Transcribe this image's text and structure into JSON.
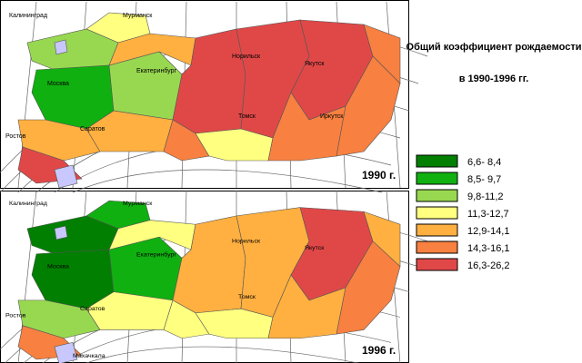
{
  "title": "Общий коэффициент рождаемости",
  "subtitle": "в 1990-1996 гг.",
  "legend": [
    {
      "label": "6,6- 8,4",
      "color": "#007f00"
    },
    {
      "label": "8,5- 9,7",
      "color": "#10b010"
    },
    {
      "label": "9,8-11,2",
      "color": "#98d850"
    },
    {
      "label": "11,3-12,7",
      "color": "#ffff80"
    },
    {
      "label": "12,9-14,1",
      "color": "#ffb040"
    },
    {
      "label": "14,3-16,1",
      "color": "#f88040"
    },
    {
      "label": "16,3-26,2",
      "color": "#e04848"
    }
  ],
  "maps": [
    {
      "year_label": "1990 г.",
      "place_labels": [
        "Калининград",
        "Мурманск",
        "Москва",
        "Ростов",
        "Саратов",
        "Екатеринбург",
        "Норильск",
        "Якутск",
        "Томск",
        "Иркутск"
      ]
    },
    {
      "year_label": "1996 г.",
      "place_labels": [
        "Калининград",
        "Мурманск",
        "Москва",
        "Ростов",
        "Саратов",
        "Екатеринбург",
        "Норильск",
        "Якутск",
        "Томск",
        "Махачкала"
      ]
    }
  ]
}
